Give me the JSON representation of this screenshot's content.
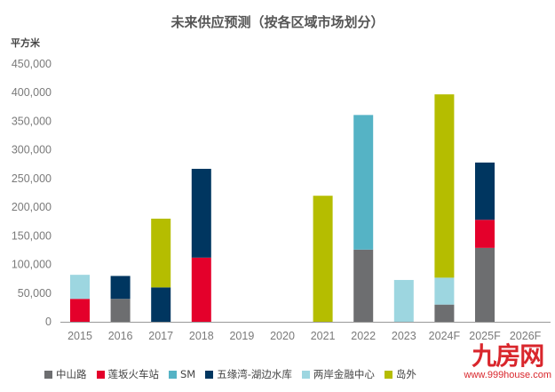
{
  "chart_data": {
    "type": "bar",
    "stacked": true,
    "title": "未来供应预测（按各区域市场划分）",
    "ylabel": "平方米",
    "xlabel": "",
    "ylim": [
      0,
      450000
    ],
    "yticks": [
      "0",
      "50,000",
      "100,000",
      "150,000",
      "200,000",
      "250,000",
      "300,000",
      "350,000",
      "400,000",
      "450,000"
    ],
    "ytick_values": [
      0,
      50000,
      100000,
      150000,
      200000,
      250000,
      300000,
      350000,
      400000,
      450000
    ],
    "grid": false,
    "legend_position": "bottom",
    "categories": [
      "2015",
      "2016",
      "2017",
      "2018",
      "2019",
      "2020",
      "2021",
      "2022",
      "2023",
      "2024F",
      "2025F",
      "2026F"
    ],
    "series": [
      {
        "name": "中山路",
        "color": "#6d6e70",
        "values": [
          0,
          40000,
          0,
          0,
          0,
          0,
          0,
          126000,
          0,
          30000,
          129000,
          0
        ]
      },
      {
        "name": "莲坂火车站",
        "color": "#e4002b",
        "values": [
          40000,
          0,
          0,
          112000,
          0,
          0,
          0,
          0,
          0,
          0,
          49000,
          0
        ]
      },
      {
        "name": "SM",
        "color": "#55b3c5",
        "values": [
          0,
          0,
          0,
          0,
          0,
          0,
          0,
          235000,
          0,
          0,
          0,
          0
        ]
      },
      {
        "name": "五缘湾-湖边水库",
        "color": "#003660",
        "values": [
          0,
          40000,
          60000,
          155000,
          0,
          0,
          0,
          0,
          0,
          0,
          100000,
          0
        ]
      },
      {
        "name": "两岸金融中心",
        "color": "#9dd6e0",
        "values": [
          42000,
          0,
          0,
          0,
          0,
          0,
          0,
          0,
          73000,
          47000,
          0,
          0
        ]
      },
      {
        "name": "岛外",
        "color": "#b5bd00",
        "values": [
          0,
          0,
          120000,
          0,
          0,
          0,
          220000,
          0,
          0,
          320000,
          0,
          0
        ]
      }
    ]
  },
  "watermark": {
    "logo": "九房网",
    "url": "www.999house.com"
  }
}
